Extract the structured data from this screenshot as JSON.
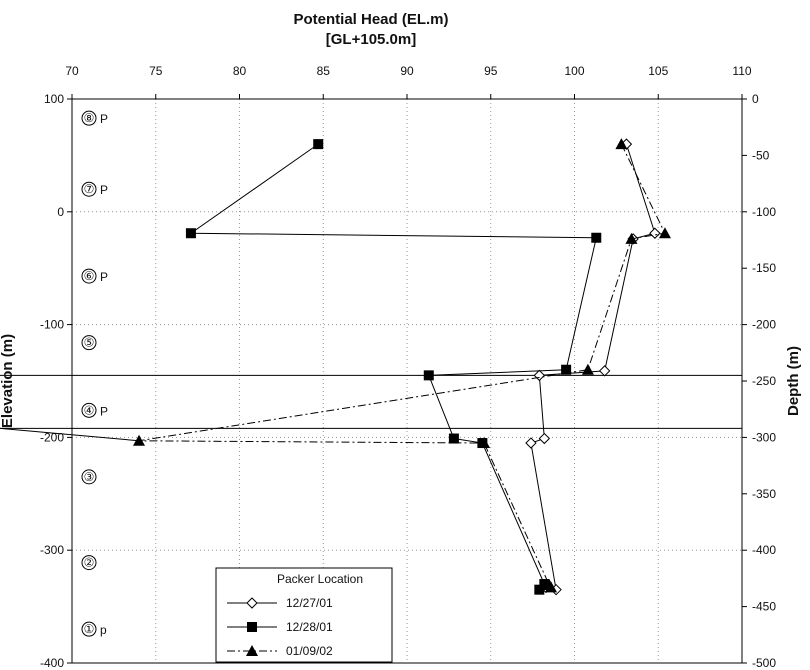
{
  "chart_data": {
    "type": "line",
    "title": "Potential Head (EL.m)",
    "subtitle": "[GL+105.0m]",
    "xlabel": "",
    "ylabel": "Elevation (m)",
    "y2label": "Depth (m)",
    "xlim": [
      70,
      110
    ],
    "x_ticks": [
      70,
      75,
      80,
      85,
      90,
      95,
      100,
      105,
      110
    ],
    "ylim": [
      -400,
      100
    ],
    "y_ticks": [
      -400,
      -300,
      -200,
      -100,
      0,
      100
    ],
    "y2lim": [
      -500,
      0
    ],
    "y2_ticks": [
      0,
      -50,
      -100,
      -150,
      -200,
      -250,
      -300,
      -350,
      -400,
      -450,
      -500
    ],
    "grid": true,
    "legend": {
      "title": "Packer Location",
      "position": "bottom-left"
    },
    "zones": [
      {
        "label": "⑧",
        "suffix": "P",
        "y": 83
      },
      {
        "label": "⑦",
        "suffix": "P",
        "y": 20
      },
      {
        "label": "⑥",
        "suffix": "P",
        "y": -57
      },
      {
        "label": "⑤",
        "suffix": "",
        "y": -116
      },
      {
        "label": "④",
        "suffix": "P",
        "y": -176
      },
      {
        "label": "③",
        "suffix": "",
        "y": -235
      },
      {
        "label": "②",
        "suffix": "",
        "y": -311
      },
      {
        "label": "①",
        "suffix": "p",
        "y": -370
      }
    ],
    "packer_lines": [
      -145,
      -192
    ],
    "series": [
      {
        "name": "12/27/01",
        "marker": "diamond",
        "points": [
          [
            103.1,
            60
          ],
          [
            104.8,
            -19
          ],
          [
            103.5,
            -24
          ],
          [
            101.8,
            -141
          ],
          [
            97.9,
            -145
          ],
          [
            98.2,
            -201
          ],
          [
            97.4,
            -205
          ],
          [
            98.9,
            -335
          ],
          [
            98.3,
            -333
          ]
        ]
      },
      {
        "name": "12/28/01",
        "marker": "square",
        "points": [
          [
            84.7,
            60
          ],
          [
            77.1,
            -19
          ],
          [
            101.3,
            -23
          ],
          [
            99.5,
            -140
          ],
          [
            91.3,
            -145
          ],
          [
            92.8,
            -201
          ],
          [
            94.5,
            -205
          ],
          [
            98.2,
            -330
          ],
          [
            97.9,
            -335
          ]
        ]
      },
      {
        "name": "01/09/02",
        "marker": "triangle",
        "points": [
          [
            102.8,
            60
          ],
          [
            105.4,
            -19
          ],
          [
            103.4,
            -24
          ],
          [
            100.8,
            -140
          ],
          [
            74.0,
            -203
          ],
          [
            94.6,
            -205
          ],
          [
            98.5,
            -331
          ],
          [
            98.6,
            -333
          ]
        ]
      }
    ]
  }
}
